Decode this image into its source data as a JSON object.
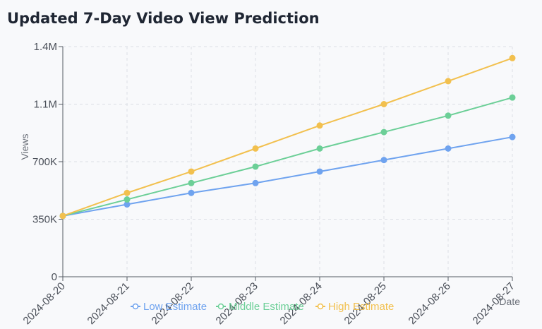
{
  "title": "Updated 7-Day Video View Prediction",
  "chart_data": {
    "type": "line",
    "title": "Updated 7-Day Video View Prediction",
    "xlabel": "Date",
    "ylabel": "Views",
    "x": [
      "2024-08-20",
      "2024-08-21",
      "2024-08-22",
      "2024-08-23",
      "2024-08-24",
      "2024-08-25",
      "2024-08-26",
      "2024-08-27"
    ],
    "ylim": [
      0,
      1400000
    ],
    "yticks": [
      0,
      350000,
      700000,
      1050000,
      1400000
    ],
    "ytick_labels": [
      "0",
      "350K",
      "700K",
      "1.1M",
      "1.4M"
    ],
    "grid": true,
    "legend_position": "bottom",
    "series": [
      {
        "name": "Low Estimate",
        "color": "#6fa3ef",
        "values": [
          370000,
          440000,
          510000,
          570000,
          640000,
          710000,
          780000,
          850000
        ]
      },
      {
        "name": "Middle Estimate",
        "color": "#6ccf97",
        "values": [
          370000,
          470000,
          570000,
          670000,
          780000,
          880000,
          980000,
          1090000
        ]
      },
      {
        "name": "High Estimate",
        "color": "#f2c04e",
        "values": [
          370000,
          510000,
          640000,
          780000,
          920000,
          1050000,
          1190000,
          1330000
        ]
      }
    ]
  }
}
